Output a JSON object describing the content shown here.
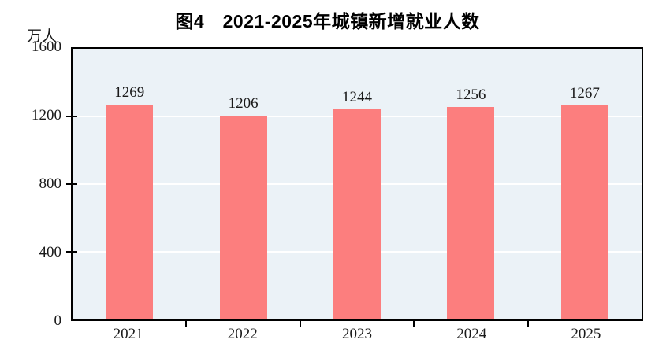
{
  "header": {
    "title": "图4　2021-2025年城镇新增就业人数"
  },
  "colors": {
    "page_bg": "#ffffff",
    "bar": "#FC7E7E",
    "plot_bg": "#EBF2F7",
    "gridline": "#FFFFFF",
    "axis": "#000000",
    "text": "#1a1a1a"
  },
  "chart_data": {
    "type": "bar",
    "title": "图4　2021-2025年城镇新增就业人数",
    "unit_label": "万人",
    "ylabel": "万人",
    "xlabel": "",
    "categories": [
      "2021",
      "2022",
      "2023",
      "2024",
      "2025"
    ],
    "values": [
      1269,
      1206,
      1244,
      1256,
      1267
    ],
    "ylim": [
      0,
      1600
    ],
    "yticks": [
      1600,
      1200,
      800,
      400,
      0
    ],
    "grid": true,
    "legend": "none",
    "bar_color": "#FC7E7E",
    "plot_background": "#EBF2F7"
  }
}
